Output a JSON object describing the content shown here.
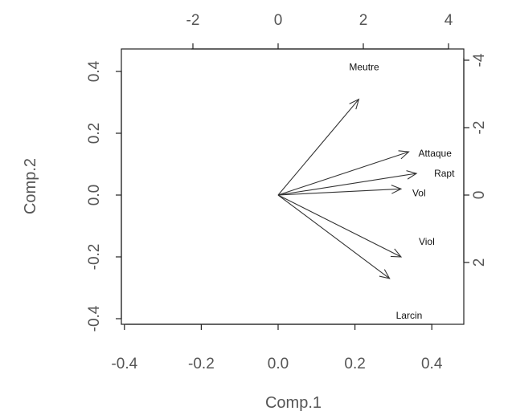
{
  "chart_data": {
    "type": "biplot",
    "xlabel": "Comp.1",
    "ylabel": "Comp.2",
    "xlim": [
      -0.45,
      0.48
    ],
    "ylim": [
      -0.42,
      0.47
    ],
    "x_ticks": [
      "-0.4",
      "-0.2",
      "0.0",
      "0.2",
      "0.4"
    ],
    "y_ticks": [
      "-0.4",
      "-0.2",
      "0.0",
      "0.2",
      "0.4"
    ],
    "top_ticks": [
      "-2",
      "0",
      "2",
      "4"
    ],
    "right_ticks": [
      "-4",
      "-2",
      "0",
      "2"
    ],
    "arrows": [
      {
        "label": "Meutre",
        "x": 0.21,
        "y": 0.31
      },
      {
        "label": "Attaque",
        "x": 0.34,
        "y": 0.14
      },
      {
        "label": "Rapt",
        "x": 0.36,
        "y": 0.07
      },
      {
        "label": "Vol",
        "x": 0.32,
        "y": 0.02
      },
      {
        "label": "Viol",
        "x": 0.32,
        "y": -0.2
      },
      {
        "label": "Larcin",
        "x": 0.29,
        "y": -0.27
      }
    ]
  }
}
